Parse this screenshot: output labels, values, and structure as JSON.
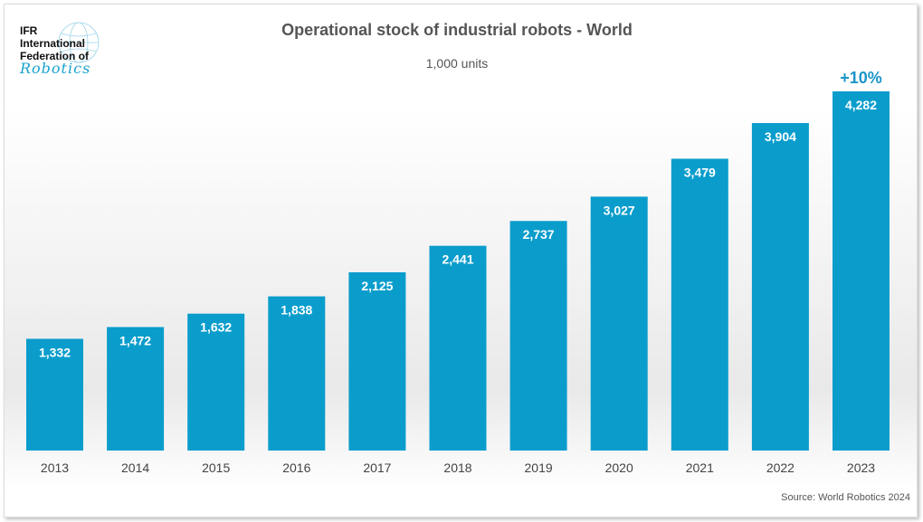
{
  "logo": {
    "line1": "IFR",
    "line2": "International",
    "line3": "Federation of",
    "line4": "Robotics"
  },
  "chart_data": {
    "type": "bar",
    "title": "Operational stock of industrial robots - World",
    "subtitle": "1,000 units",
    "categories": [
      "2013",
      "2014",
      "2015",
      "2016",
      "2017",
      "2018",
      "2019",
      "2020",
      "2021",
      "2022",
      "2023"
    ],
    "values": [
      1332,
      1472,
      1632,
      1838,
      2125,
      2441,
      2737,
      3027,
      3479,
      3904,
      4282
    ],
    "data_labels": [
      "1,332",
      "1,472",
      "1,632",
      "1,838",
      "2,125",
      "2,441",
      "2,737",
      "3,027",
      "3,479",
      "3,904",
      "4,282"
    ],
    "annotation": "+10%",
    "source": "Source: World Robotics 2024",
    "bar_color": "#0a9dcc",
    "annotation_color": "#1b95c8",
    "grid": false,
    "ylim": [
      0,
      4282
    ]
  }
}
